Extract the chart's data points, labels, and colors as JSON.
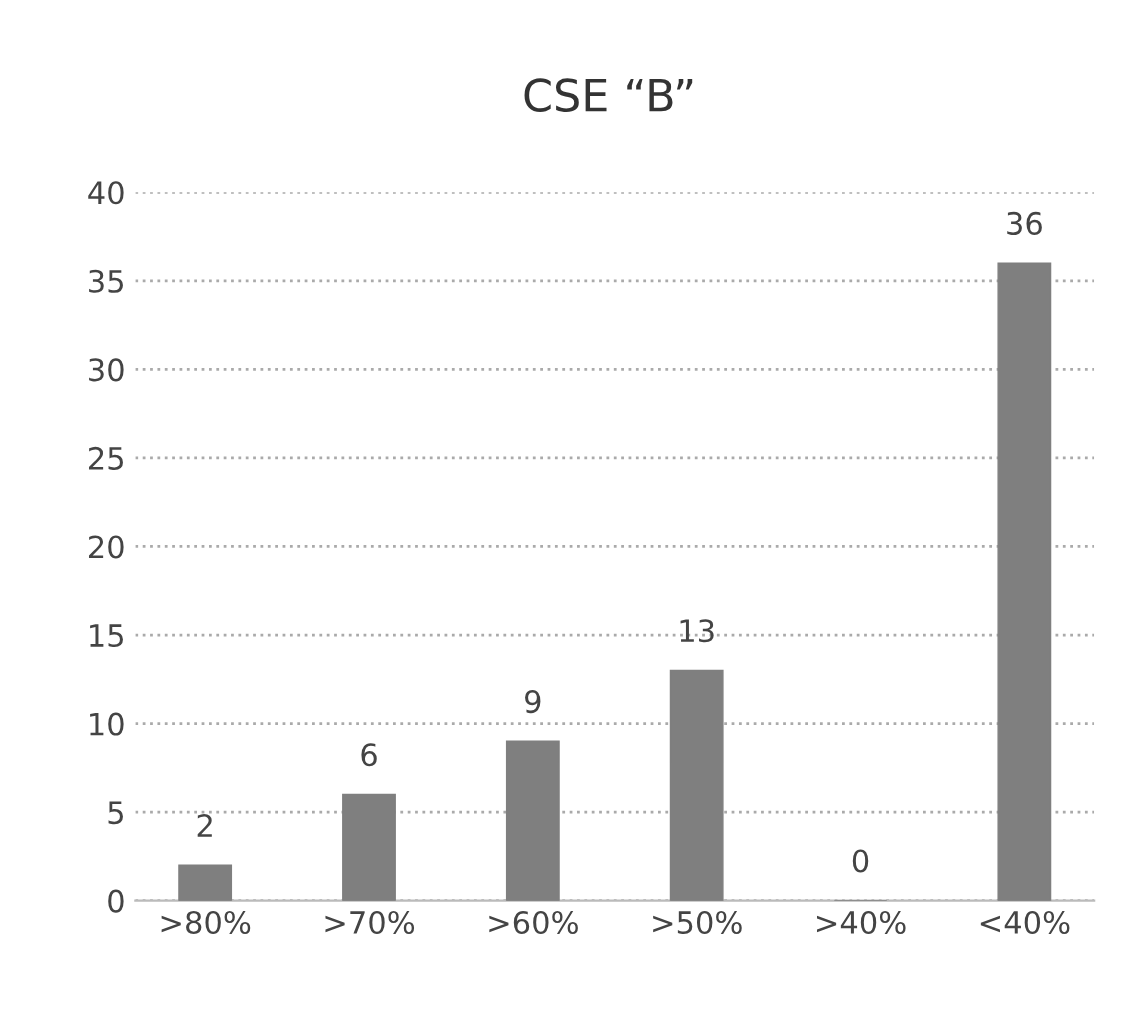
{
  "chart_data": {
    "type": "bar",
    "title": "CSE “B”",
    "categories": [
      ">80%",
      ">70%",
      ">60%",
      ">50%",
      ">40%",
      "<40%"
    ],
    "values": [
      2,
      6,
      9,
      13,
      0,
      36
    ],
    "color": "#7f7f7f",
    "ylim": [
      0,
      40
    ],
    "yticks": [
      0,
      5,
      10,
      15,
      20,
      25,
      30,
      35,
      40
    ],
    "grid": "y",
    "data_labels": true
  }
}
